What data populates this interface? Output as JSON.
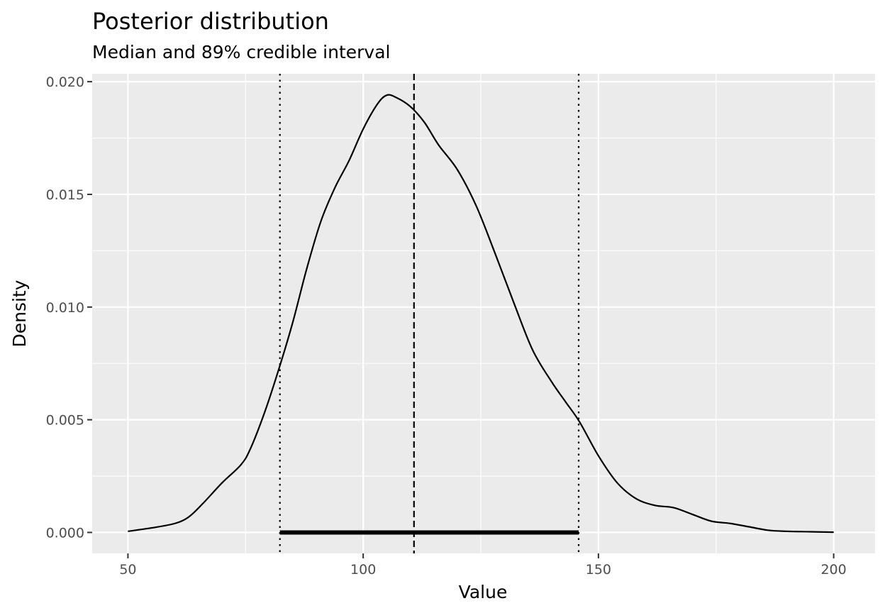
{
  "chart_data": {
    "type": "line",
    "title": "Posterior distribution",
    "subtitle": "Median and 89% credible interval",
    "xlabel": "Value",
    "ylabel": "Density",
    "xlim": [
      42.4,
      208.8
    ],
    "ylim": [
      -0.00093,
      0.02035
    ],
    "x_ticks": [
      50,
      100,
      150,
      200
    ],
    "x_tick_labels": [
      "50",
      "100",
      "150",
      "200"
    ],
    "x_minor_breaks": [
      75,
      125,
      175
    ],
    "y_ticks": [
      0.0,
      0.005,
      0.01,
      0.015,
      0.02
    ],
    "y_tick_labels": [
      "0.000",
      "0.005",
      "0.010",
      "0.015",
      "0.020"
    ],
    "y_minor_breaks": [
      0.0025,
      0.0075,
      0.0125,
      0.0175
    ],
    "grid": true,
    "legend": "none",
    "series": [
      {
        "x": [
          50,
          55,
          60,
          63,
          66,
          70,
          74,
          76,
          79,
          82,
          85,
          88,
          91,
          94,
          97,
          100,
          103,
          105,
          107,
          110,
          113,
          116,
          120,
          124,
          128,
          132,
          136,
          140,
          143,
          146,
          150,
          154,
          158,
          162,
          166,
          170,
          174,
          178,
          182,
          186,
          190,
          195,
          200
        ],
        "y": [
          5e-05,
          0.0002,
          0.0004,
          0.0007,
          0.0013,
          0.0022,
          0.003,
          0.0037,
          0.0053,
          0.0072,
          0.0093,
          0.0117,
          0.0138,
          0.0153,
          0.0165,
          0.0179,
          0.019,
          0.0194,
          0.0193,
          0.0189,
          0.0182,
          0.0172,
          0.0161,
          0.0145,
          0.0124,
          0.0102,
          0.0081,
          0.0067,
          0.0058,
          0.0049,
          0.0034,
          0.0022,
          0.0015,
          0.0012,
          0.0011,
          0.0008,
          0.0005,
          0.0004,
          0.00025,
          0.0001,
          5e-05,
          3e-05,
          1e-05
        ]
      }
    ],
    "annotations": {
      "median": 110.8,
      "ci_low": 82.3,
      "ci_high": 145.8
    },
    "colors": {
      "panel": "#ebebeb",
      "grid": "#ffffff",
      "line": "#000000",
      "tick_label": "#4d4d4d",
      "tick_mark": "#333333"
    }
  }
}
